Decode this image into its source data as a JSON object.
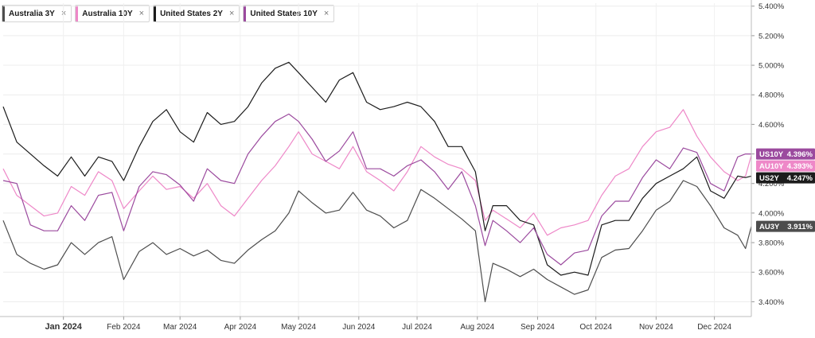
{
  "legend": [
    {
      "label": "Australia 3Y",
      "color": "#4d4d4d",
      "close": "×"
    },
    {
      "label": "Australia 10Y",
      "color": "#ee88c8",
      "close": "×"
    },
    {
      "label": "United States 2Y",
      "color": "#1c1c1c",
      "close": "×"
    },
    {
      "label": "United States 10Y",
      "color": "#9b4a9e",
      "close": "×"
    }
  ],
  "chart_data": {
    "type": "line",
    "xlim": [
      "2023-12-01",
      "2024-12-20"
    ],
    "ylim": [
      3.3,
      5.42
    ],
    "y_ticks": [
      "3.400%",
      "3.600%",
      "3.800%",
      "4.000%",
      "4.200%",
      "4.400%",
      "4.600%",
      "4.800%",
      "5.000%",
      "5.200%",
      "5.400%"
    ],
    "x_ticks": [
      {
        "label": "Jan 2024",
        "date": "2024-01-01",
        "bold": true
      },
      {
        "label": "Feb 2024",
        "date": "2024-02-01"
      },
      {
        "label": "Mar 2024",
        "date": "2024-03-01"
      },
      {
        "label": "Apr 2024",
        "date": "2024-04-01"
      },
      {
        "label": "May 2024",
        "date": "2024-05-01"
      },
      {
        "label": "Jun 2024",
        "date": "2024-06-01"
      },
      {
        "label": "Jul 2024",
        "date": "2024-07-01"
      },
      {
        "label": "Aug 2024",
        "date": "2024-08-01"
      },
      {
        "label": "Sep 2024",
        "date": "2024-09-01"
      },
      {
        "label": "Oct 2024",
        "date": "2024-10-01"
      },
      {
        "label": "Nov 2024",
        "date": "2024-11-01"
      },
      {
        "label": "Dec 2024",
        "date": "2024-12-01"
      }
    ],
    "grid": true,
    "series": [
      {
        "key": "au3y",
        "name": "Australia 3Y",
        "tag": "AU3Y",
        "last": "3.911%",
        "color": "#4d4d4d",
        "tag_color": "#4d4d4d",
        "points": [
          [
            "2023-12-01",
            3.95
          ],
          [
            "2023-12-08",
            3.72
          ],
          [
            "2023-12-15",
            3.66
          ],
          [
            "2023-12-22",
            3.62
          ],
          [
            "2023-12-29",
            3.65
          ],
          [
            "2024-01-05",
            3.8
          ],
          [
            "2024-01-12",
            3.72
          ],
          [
            "2024-01-19",
            3.8
          ],
          [
            "2024-01-26",
            3.84
          ],
          [
            "2024-02-01",
            3.55
          ],
          [
            "2024-02-09",
            3.74
          ],
          [
            "2024-02-16",
            3.8
          ],
          [
            "2024-02-23",
            3.72
          ],
          [
            "2024-03-01",
            3.76
          ],
          [
            "2024-03-08",
            3.71
          ],
          [
            "2024-03-15",
            3.75
          ],
          [
            "2024-03-22",
            3.68
          ],
          [
            "2024-03-29",
            3.66
          ],
          [
            "2024-04-05",
            3.75
          ],
          [
            "2024-04-12",
            3.82
          ],
          [
            "2024-04-19",
            3.88
          ],
          [
            "2024-04-26",
            4.0
          ],
          [
            "2024-05-01",
            4.15
          ],
          [
            "2024-05-08",
            4.07
          ],
          [
            "2024-05-15",
            4.0
          ],
          [
            "2024-05-22",
            4.02
          ],
          [
            "2024-05-29",
            4.14
          ],
          [
            "2024-06-05",
            4.02
          ],
          [
            "2024-06-12",
            3.98
          ],
          [
            "2024-06-19",
            3.9
          ],
          [
            "2024-06-26",
            3.95
          ],
          [
            "2024-07-03",
            4.16
          ],
          [
            "2024-07-10",
            4.1
          ],
          [
            "2024-07-17",
            4.03
          ],
          [
            "2024-07-24",
            3.96
          ],
          [
            "2024-07-31",
            3.88
          ],
          [
            "2024-08-05",
            3.4
          ],
          [
            "2024-08-09",
            3.66
          ],
          [
            "2024-08-16",
            3.62
          ],
          [
            "2024-08-23",
            3.57
          ],
          [
            "2024-08-30",
            3.62
          ],
          [
            "2024-09-06",
            3.55
          ],
          [
            "2024-09-13",
            3.5
          ],
          [
            "2024-09-20",
            3.45
          ],
          [
            "2024-09-27",
            3.48
          ],
          [
            "2024-10-04",
            3.7
          ],
          [
            "2024-10-11",
            3.75
          ],
          [
            "2024-10-18",
            3.76
          ],
          [
            "2024-10-25",
            3.88
          ],
          [
            "2024-11-01",
            4.02
          ],
          [
            "2024-11-08",
            4.08
          ],
          [
            "2024-11-15",
            4.22
          ],
          [
            "2024-11-22",
            4.18
          ],
          [
            "2024-11-29",
            4.05
          ],
          [
            "2024-12-06",
            3.9
          ],
          [
            "2024-12-13",
            3.85
          ],
          [
            "2024-12-17",
            3.76
          ],
          [
            "2024-12-20",
            3.91
          ]
        ]
      },
      {
        "key": "au10y",
        "name": "Australia 10Y",
        "tag": "AU10Y",
        "last": "4.393%",
        "color": "#ee88c8",
        "tag_color": "#ee88c8",
        "points": [
          [
            "2023-12-01",
            4.3
          ],
          [
            "2023-12-08",
            4.12
          ],
          [
            "2023-12-15",
            4.05
          ],
          [
            "2023-12-22",
            3.98
          ],
          [
            "2023-12-29",
            4.0
          ],
          [
            "2024-01-05",
            4.18
          ],
          [
            "2024-01-12",
            4.12
          ],
          [
            "2024-01-19",
            4.28
          ],
          [
            "2024-01-26",
            4.22
          ],
          [
            "2024-02-01",
            4.03
          ],
          [
            "2024-02-09",
            4.15
          ],
          [
            "2024-02-16",
            4.25
          ],
          [
            "2024-02-23",
            4.16
          ],
          [
            "2024-03-01",
            4.18
          ],
          [
            "2024-03-08",
            4.1
          ],
          [
            "2024-03-15",
            4.2
          ],
          [
            "2024-03-22",
            4.05
          ],
          [
            "2024-03-29",
            3.98
          ],
          [
            "2024-04-05",
            4.1
          ],
          [
            "2024-04-12",
            4.22
          ],
          [
            "2024-04-19",
            4.32
          ],
          [
            "2024-04-26",
            4.45
          ],
          [
            "2024-05-01",
            4.55
          ],
          [
            "2024-05-08",
            4.4
          ],
          [
            "2024-05-15",
            4.35
          ],
          [
            "2024-05-22",
            4.3
          ],
          [
            "2024-05-29",
            4.45
          ],
          [
            "2024-06-05",
            4.28
          ],
          [
            "2024-06-12",
            4.22
          ],
          [
            "2024-06-19",
            4.15
          ],
          [
            "2024-06-26",
            4.28
          ],
          [
            "2024-07-03",
            4.45
          ],
          [
            "2024-07-10",
            4.38
          ],
          [
            "2024-07-17",
            4.33
          ],
          [
            "2024-07-24",
            4.3
          ],
          [
            "2024-07-31",
            4.22
          ],
          [
            "2024-08-05",
            3.95
          ],
          [
            "2024-08-09",
            4.02
          ],
          [
            "2024-08-16",
            3.96
          ],
          [
            "2024-08-23",
            3.9
          ],
          [
            "2024-08-30",
            4.0
          ],
          [
            "2024-09-06",
            3.85
          ],
          [
            "2024-09-13",
            3.9
          ],
          [
            "2024-09-20",
            3.92
          ],
          [
            "2024-09-27",
            3.95
          ],
          [
            "2024-10-04",
            4.12
          ],
          [
            "2024-10-11",
            4.25
          ],
          [
            "2024-10-18",
            4.3
          ],
          [
            "2024-10-25",
            4.45
          ],
          [
            "2024-11-01",
            4.55
          ],
          [
            "2024-11-08",
            4.58
          ],
          [
            "2024-11-15",
            4.7
          ],
          [
            "2024-11-22",
            4.52
          ],
          [
            "2024-11-29",
            4.38
          ],
          [
            "2024-12-06",
            4.28
          ],
          [
            "2024-12-13",
            4.22
          ],
          [
            "2024-12-17",
            4.25
          ],
          [
            "2024-12-20",
            4.39
          ]
        ]
      },
      {
        "key": "us2y",
        "name": "United States 2Y",
        "tag": "US2Y",
        "last": "4.247%",
        "color": "#1c1c1c",
        "tag_color": "#1c1c1c",
        "points": [
          [
            "2023-12-01",
            4.72
          ],
          [
            "2023-12-08",
            4.48
          ],
          [
            "2023-12-15",
            4.4
          ],
          [
            "2023-12-22",
            4.32
          ],
          [
            "2023-12-29",
            4.25
          ],
          [
            "2024-01-05",
            4.38
          ],
          [
            "2024-01-12",
            4.25
          ],
          [
            "2024-01-19",
            4.38
          ],
          [
            "2024-01-26",
            4.35
          ],
          [
            "2024-02-01",
            4.22
          ],
          [
            "2024-02-09",
            4.45
          ],
          [
            "2024-02-16",
            4.62
          ],
          [
            "2024-02-23",
            4.7
          ],
          [
            "2024-03-01",
            4.55
          ],
          [
            "2024-03-08",
            4.48
          ],
          [
            "2024-03-15",
            4.68
          ],
          [
            "2024-03-22",
            4.6
          ],
          [
            "2024-03-29",
            4.62
          ],
          [
            "2024-04-05",
            4.72
          ],
          [
            "2024-04-12",
            4.88
          ],
          [
            "2024-04-19",
            4.98
          ],
          [
            "2024-04-26",
            5.02
          ],
          [
            "2024-05-01",
            4.95
          ],
          [
            "2024-05-08",
            4.85
          ],
          [
            "2024-05-15",
            4.75
          ],
          [
            "2024-05-22",
            4.9
          ],
          [
            "2024-05-29",
            4.95
          ],
          [
            "2024-06-05",
            4.75
          ],
          [
            "2024-06-12",
            4.7
          ],
          [
            "2024-06-19",
            4.72
          ],
          [
            "2024-06-26",
            4.75
          ],
          [
            "2024-07-03",
            4.72
          ],
          [
            "2024-07-10",
            4.62
          ],
          [
            "2024-07-17",
            4.45
          ],
          [
            "2024-07-24",
            4.45
          ],
          [
            "2024-07-31",
            4.28
          ],
          [
            "2024-08-05",
            3.88
          ],
          [
            "2024-08-09",
            4.05
          ],
          [
            "2024-08-16",
            4.05
          ],
          [
            "2024-08-23",
            3.95
          ],
          [
            "2024-08-30",
            3.92
          ],
          [
            "2024-09-06",
            3.65
          ],
          [
            "2024-09-13",
            3.58
          ],
          [
            "2024-09-20",
            3.6
          ],
          [
            "2024-09-27",
            3.58
          ],
          [
            "2024-10-04",
            3.92
          ],
          [
            "2024-10-11",
            3.95
          ],
          [
            "2024-10-18",
            3.95
          ],
          [
            "2024-10-25",
            4.1
          ],
          [
            "2024-11-01",
            4.2
          ],
          [
            "2024-11-08",
            4.25
          ],
          [
            "2024-11-15",
            4.3
          ],
          [
            "2024-11-22",
            4.38
          ],
          [
            "2024-11-29",
            4.15
          ],
          [
            "2024-12-06",
            4.1
          ],
          [
            "2024-12-13",
            4.25
          ],
          [
            "2024-12-17",
            4.24
          ],
          [
            "2024-12-20",
            4.25
          ]
        ]
      },
      {
        "key": "us10y",
        "name": "United States 10Y",
        "tag": "US10Y",
        "last": "4.396%",
        "color": "#9b4a9e",
        "tag_color": "#9b4a9e",
        "points": [
          [
            "2023-12-01",
            4.22
          ],
          [
            "2023-12-08",
            4.2
          ],
          [
            "2023-12-15",
            3.92
          ],
          [
            "2023-12-22",
            3.88
          ],
          [
            "2023-12-29",
            3.88
          ],
          [
            "2024-01-05",
            4.05
          ],
          [
            "2024-01-12",
            3.95
          ],
          [
            "2024-01-19",
            4.12
          ],
          [
            "2024-01-26",
            4.14
          ],
          [
            "2024-02-01",
            3.88
          ],
          [
            "2024-02-09",
            4.18
          ],
          [
            "2024-02-16",
            4.28
          ],
          [
            "2024-02-23",
            4.26
          ],
          [
            "2024-03-01",
            4.19
          ],
          [
            "2024-03-08",
            4.08
          ],
          [
            "2024-03-15",
            4.3
          ],
          [
            "2024-03-22",
            4.22
          ],
          [
            "2024-03-29",
            4.2
          ],
          [
            "2024-04-05",
            4.4
          ],
          [
            "2024-04-12",
            4.52
          ],
          [
            "2024-04-19",
            4.62
          ],
          [
            "2024-04-26",
            4.67
          ],
          [
            "2024-05-01",
            4.62
          ],
          [
            "2024-05-08",
            4.5
          ],
          [
            "2024-05-15",
            4.35
          ],
          [
            "2024-05-22",
            4.42
          ],
          [
            "2024-05-29",
            4.55
          ],
          [
            "2024-06-05",
            4.3
          ],
          [
            "2024-06-12",
            4.3
          ],
          [
            "2024-06-19",
            4.25
          ],
          [
            "2024-06-26",
            4.32
          ],
          [
            "2024-07-03",
            4.36
          ],
          [
            "2024-07-10",
            4.28
          ],
          [
            "2024-07-17",
            4.16
          ],
          [
            "2024-07-24",
            4.28
          ],
          [
            "2024-07-31",
            4.05
          ],
          [
            "2024-08-05",
            3.78
          ],
          [
            "2024-08-09",
            3.95
          ],
          [
            "2024-08-16",
            3.88
          ],
          [
            "2024-08-23",
            3.8
          ],
          [
            "2024-08-30",
            3.9
          ],
          [
            "2024-09-06",
            3.72
          ],
          [
            "2024-09-13",
            3.65
          ],
          [
            "2024-09-20",
            3.73
          ],
          [
            "2024-09-27",
            3.75
          ],
          [
            "2024-10-04",
            3.98
          ],
          [
            "2024-10-11",
            4.08
          ],
          [
            "2024-10-18",
            4.08
          ],
          [
            "2024-10-25",
            4.24
          ],
          [
            "2024-11-01",
            4.36
          ],
          [
            "2024-11-08",
            4.3
          ],
          [
            "2024-11-15",
            4.44
          ],
          [
            "2024-11-22",
            4.41
          ],
          [
            "2024-11-29",
            4.2
          ],
          [
            "2024-12-06",
            4.15
          ],
          [
            "2024-12-13",
            4.38
          ],
          [
            "2024-12-17",
            4.4
          ],
          [
            "2024-12-20",
            4.4
          ]
        ]
      }
    ]
  }
}
